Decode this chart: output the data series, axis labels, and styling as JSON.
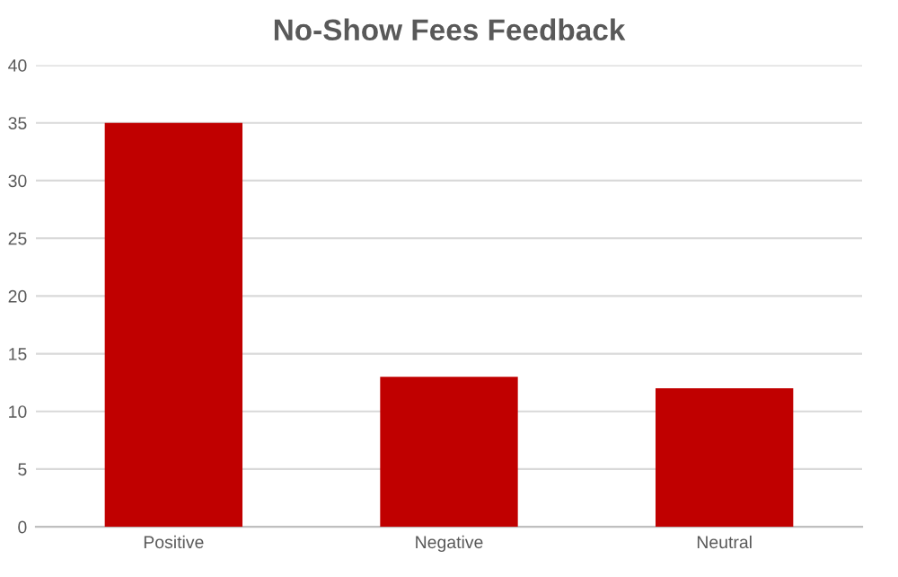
{
  "chart_data": {
    "type": "bar",
    "title": "No-Show Fees Feedback",
    "categories": [
      "Positive",
      "Negative",
      "Neutral"
    ],
    "values": [
      35,
      13,
      12
    ],
    "color": "#c00000",
    "ylim": [
      0,
      40
    ],
    "yticks": [
      0,
      5,
      10,
      15,
      20,
      25,
      30,
      35,
      40
    ],
    "grid": "y"
  }
}
